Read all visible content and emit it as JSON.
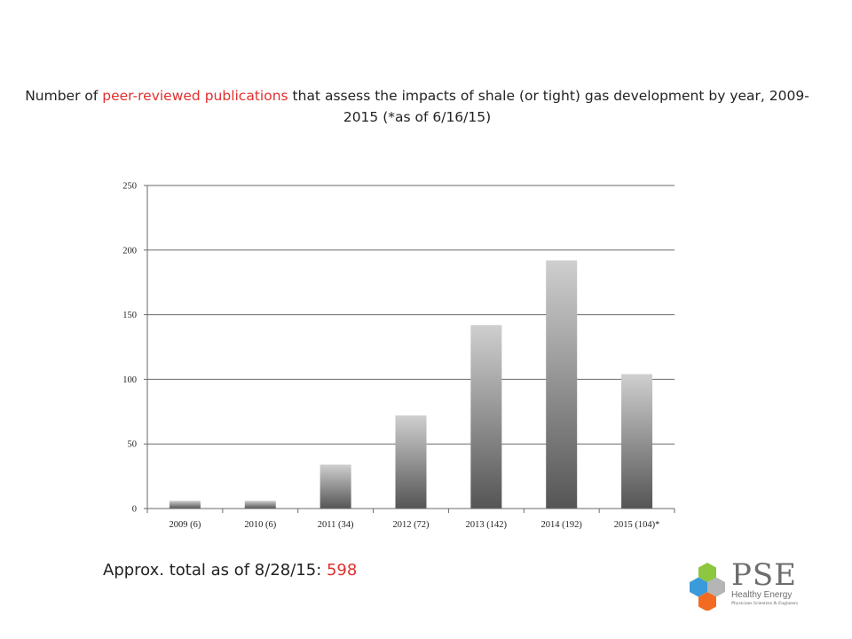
{
  "title": {
    "pre": "Number of ",
    "highlight": "peer-reviewed  publications",
    "post": " that assess the impacts of shale (or tight) gas development by year, 2009-2015 (*as of 6/16/15)",
    "highlight_color": "#e0302e"
  },
  "chart_data": {
    "type": "bar",
    "title": "",
    "xlabel": "",
    "ylabel": "",
    "categories": [
      "2009 (6)",
      "2010 (6)",
      "2011 (34)",
      "2012 (72)",
      "2013 (142)",
      "2014 (192)",
      "2015 (104)*"
    ],
    "values": [
      6,
      6,
      34,
      72,
      142,
      192,
      104
    ],
    "ylim": [
      0,
      250
    ],
    "yticks": [
      0,
      50,
      100,
      150,
      200,
      250
    ],
    "grid": true,
    "bar_gradient": [
      "#cfcfcf",
      "#555555"
    ]
  },
  "total": {
    "label": "Approx. total as of 8/28/15: ",
    "value": "598"
  },
  "logo": {
    "name": "PSE",
    "line1": "Healthy Energy",
    "line2": "Physicians Scientists & Engineers",
    "colors": {
      "green": "#8dc63f",
      "blue": "#3b9ad9",
      "orange": "#f26b21",
      "gray": "#b5b5b5"
    }
  }
}
